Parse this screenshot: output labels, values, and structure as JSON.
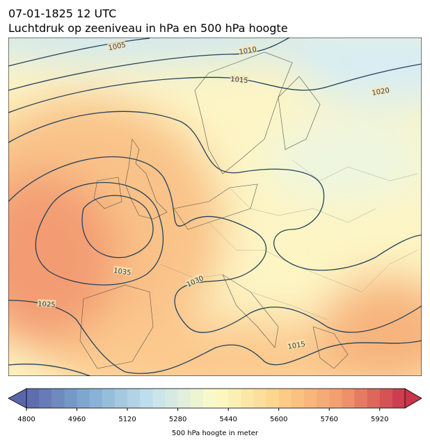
{
  "header": {
    "title": "07-01-1825 12 UTC",
    "subtitle": "Luchtdruk op zeeniveau in hPa en 500 hPa hoogte"
  },
  "map": {
    "contour_labels": [
      1005,
      1010,
      1015,
      1020,
      1035,
      1030,
      1025,
      1015
    ]
  },
  "colorbar": {
    "label": "500 hPa hoogte in meter",
    "range": [
      4800,
      6000
    ],
    "step": 40,
    "ticks": [
      4800,
      4960,
      5120,
      5280,
      5440,
      5600,
      5760,
      5920
    ],
    "colors": [
      "#5b66aa",
      "#82aed3",
      "#c6e3ef",
      "#fcfbc6",
      "#fdd28a",
      "#f29a6d",
      "#c9344a"
    ]
  }
}
